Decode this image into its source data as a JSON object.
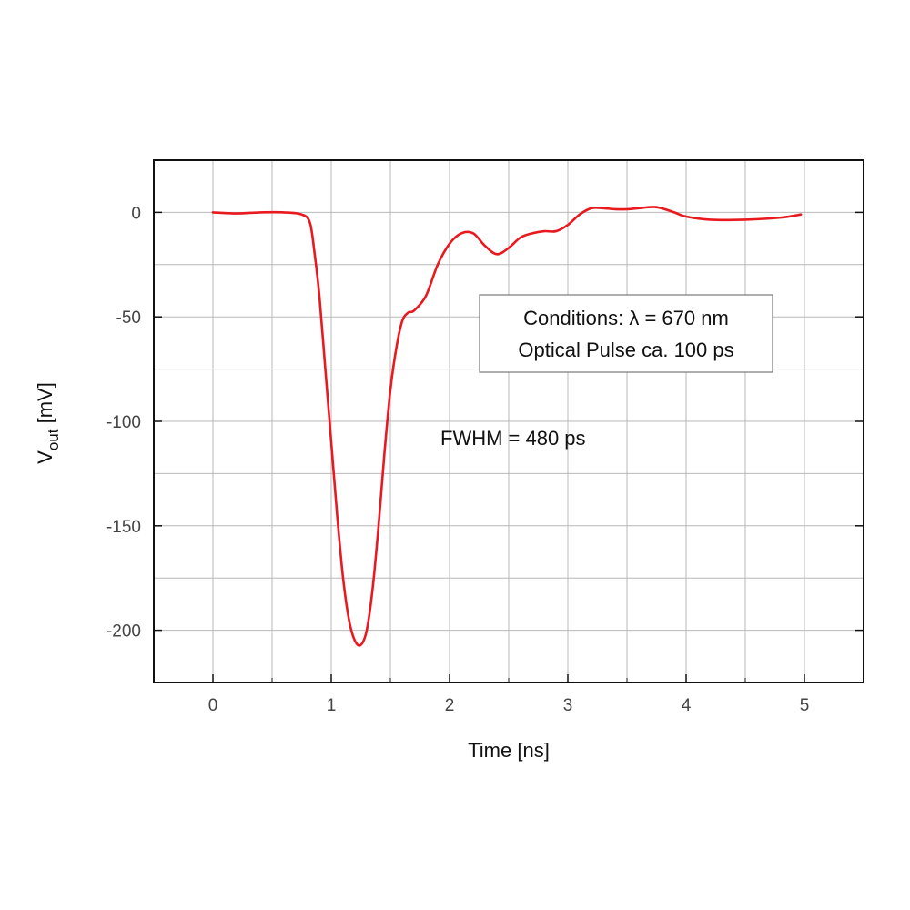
{
  "chart_data": {
    "type": "line",
    "xlabel": "Time [ns]",
    "ylabel_main": "V",
    "ylabel_sub": "out",
    "ylabel_unit": "[mV]",
    "xlim": [
      -0.5,
      5.5
    ],
    "ylim": [
      -225,
      25
    ],
    "xticks": [
      0,
      1,
      2,
      3,
      4,
      5
    ],
    "xtick_labels": [
      "0",
      "1",
      "2",
      "3",
      "4",
      "5"
    ],
    "yticks": [
      0,
      -50,
      -100,
      -150,
      -200
    ],
    "ytick_labels": [
      "0",
      "-50",
      "-100",
      "-150",
      "-200"
    ],
    "grid": true,
    "series_color": "#e8191f",
    "series": [
      {
        "x": [
          0,
          0.2,
          0.4,
          0.6,
          0.75,
          0.82,
          0.86,
          0.9,
          0.95,
          1.0,
          1.05,
          1.1,
          1.15,
          1.2,
          1.25,
          1.3,
          1.35,
          1.4,
          1.45,
          1.5,
          1.55,
          1.6,
          1.65,
          1.7,
          1.8,
          1.9,
          2.0,
          2.1,
          2.2,
          2.3,
          2.4,
          2.5,
          2.6,
          2.7,
          2.8,
          2.9,
          3.0,
          3.1,
          3.2,
          3.3,
          3.4,
          3.5,
          3.6,
          3.75,
          3.9,
          4.0,
          4.2,
          4.5,
          4.8,
          4.97
        ],
        "values": [
          0,
          -0.5,
          0,
          0,
          -1,
          -5,
          -20,
          -40,
          -75,
          -110,
          -145,
          -175,
          -195,
          -205,
          -207,
          -200,
          -180,
          -150,
          -115,
          -85,
          -65,
          -52,
          -48,
          -47,
          -40,
          -25,
          -15,
          -10,
          -10,
          -16,
          -20,
          -17,
          -12,
          -10,
          -9,
          -9,
          -6,
          -1,
          2,
          2,
          1.5,
          1.5,
          2,
          2.5,
          0,
          -2,
          -3.5,
          -3.5,
          -2.5,
          -1
        ]
      }
    ]
  },
  "annotations": {
    "conditions_line1": "Conditions:  λ = 670 nm",
    "conditions_line2": "Optical Pulse ca. 100 ps",
    "fwhm": "FWHM = 480 ps"
  }
}
